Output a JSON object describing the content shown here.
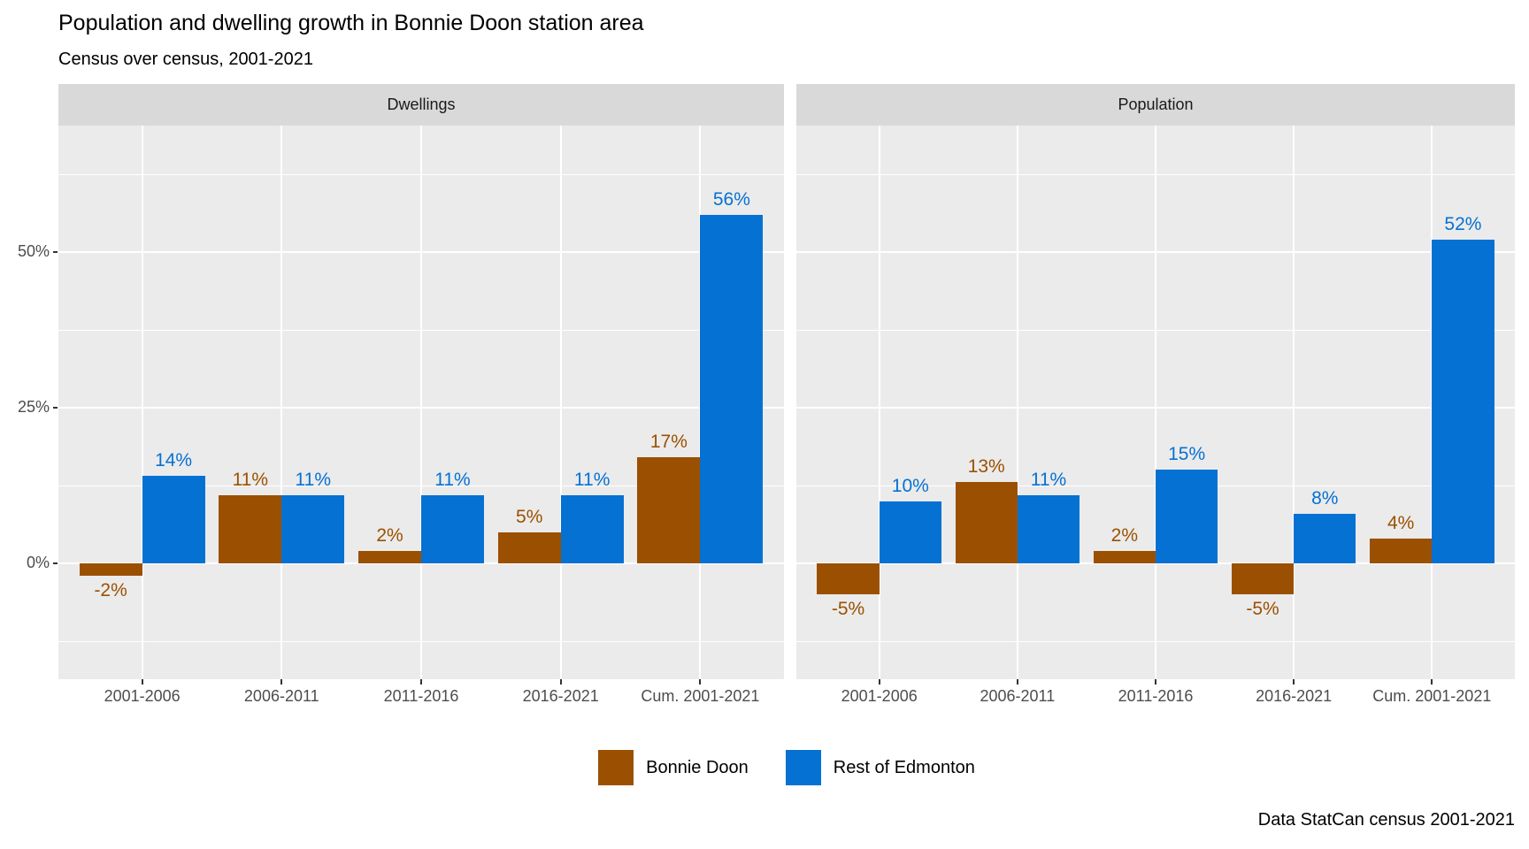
{
  "title": "Population and dwelling growth in Bonnie Doon station area",
  "subtitle": "Census over census, 2001-2021",
  "caption": "Data StatCan census 2001-2021",
  "colors": {
    "bonnie_doon": "#9b5001",
    "rest_of_edmonton": "#0571d3",
    "panel_background": "#ebebeb",
    "strip_background": "#d9d9d9",
    "gridline": "#ffffff",
    "axis_text": "#4d4d4d"
  },
  "legend": {
    "items": [
      {
        "label": "Bonnie Doon",
        "color": "#9b5001"
      },
      {
        "label": "Rest of Edmonton",
        "color": "#0571d3"
      }
    ]
  },
  "y_axis": {
    "major_ticks": [
      {
        "label": "50%",
        "value": 50
      },
      {
        "label": "25%",
        "value": 25
      },
      {
        "label": "0%",
        "value": 0
      }
    ],
    "minor_tick_values": [
      62.5,
      37.5,
      12.5,
      -12.5
    ],
    "domain": [
      -18.6,
      70.5
    ],
    "grid": "on",
    "legend_position": "bottom"
  },
  "chart_data": [
    {
      "type": "bar",
      "facet": "Dwellings",
      "categories": [
        "2001-2006",
        "2006-2011",
        "2011-2016",
        "2016-2021",
        "Cum. 2001-2021"
      ],
      "series": [
        {
          "name": "Bonnie Doon",
          "color": "#9b5001",
          "values": [
            -2,
            11,
            2,
            5,
            17
          ],
          "labels": [
            "-2%",
            "11%",
            "2%",
            "5%",
            "17%"
          ]
        },
        {
          "name": "Rest of Edmonton",
          "color": "#0571d3",
          "values": [
            14,
            11,
            11,
            11,
            56
          ],
          "labels": [
            "14%",
            "11%",
            "11%",
            "11%",
            "56%"
          ]
        }
      ]
    },
    {
      "type": "bar",
      "facet": "Population",
      "categories": [
        "2001-2006",
        "2006-2011",
        "2011-2016",
        "2016-2021",
        "Cum. 2001-2021"
      ],
      "series": [
        {
          "name": "Bonnie Doon",
          "color": "#9b5001",
          "values": [
            -5,
            13,
            2,
            -5,
            4
          ],
          "labels": [
            "-5%",
            "13%",
            "2%",
            "-5%",
            "4%"
          ]
        },
        {
          "name": "Rest of Edmonton",
          "color": "#0571d3",
          "values": [
            10,
            11,
            15,
            8,
            52
          ],
          "labels": [
            "10%",
            "11%",
            "15%",
            "8%",
            "52%"
          ]
        }
      ]
    }
  ]
}
